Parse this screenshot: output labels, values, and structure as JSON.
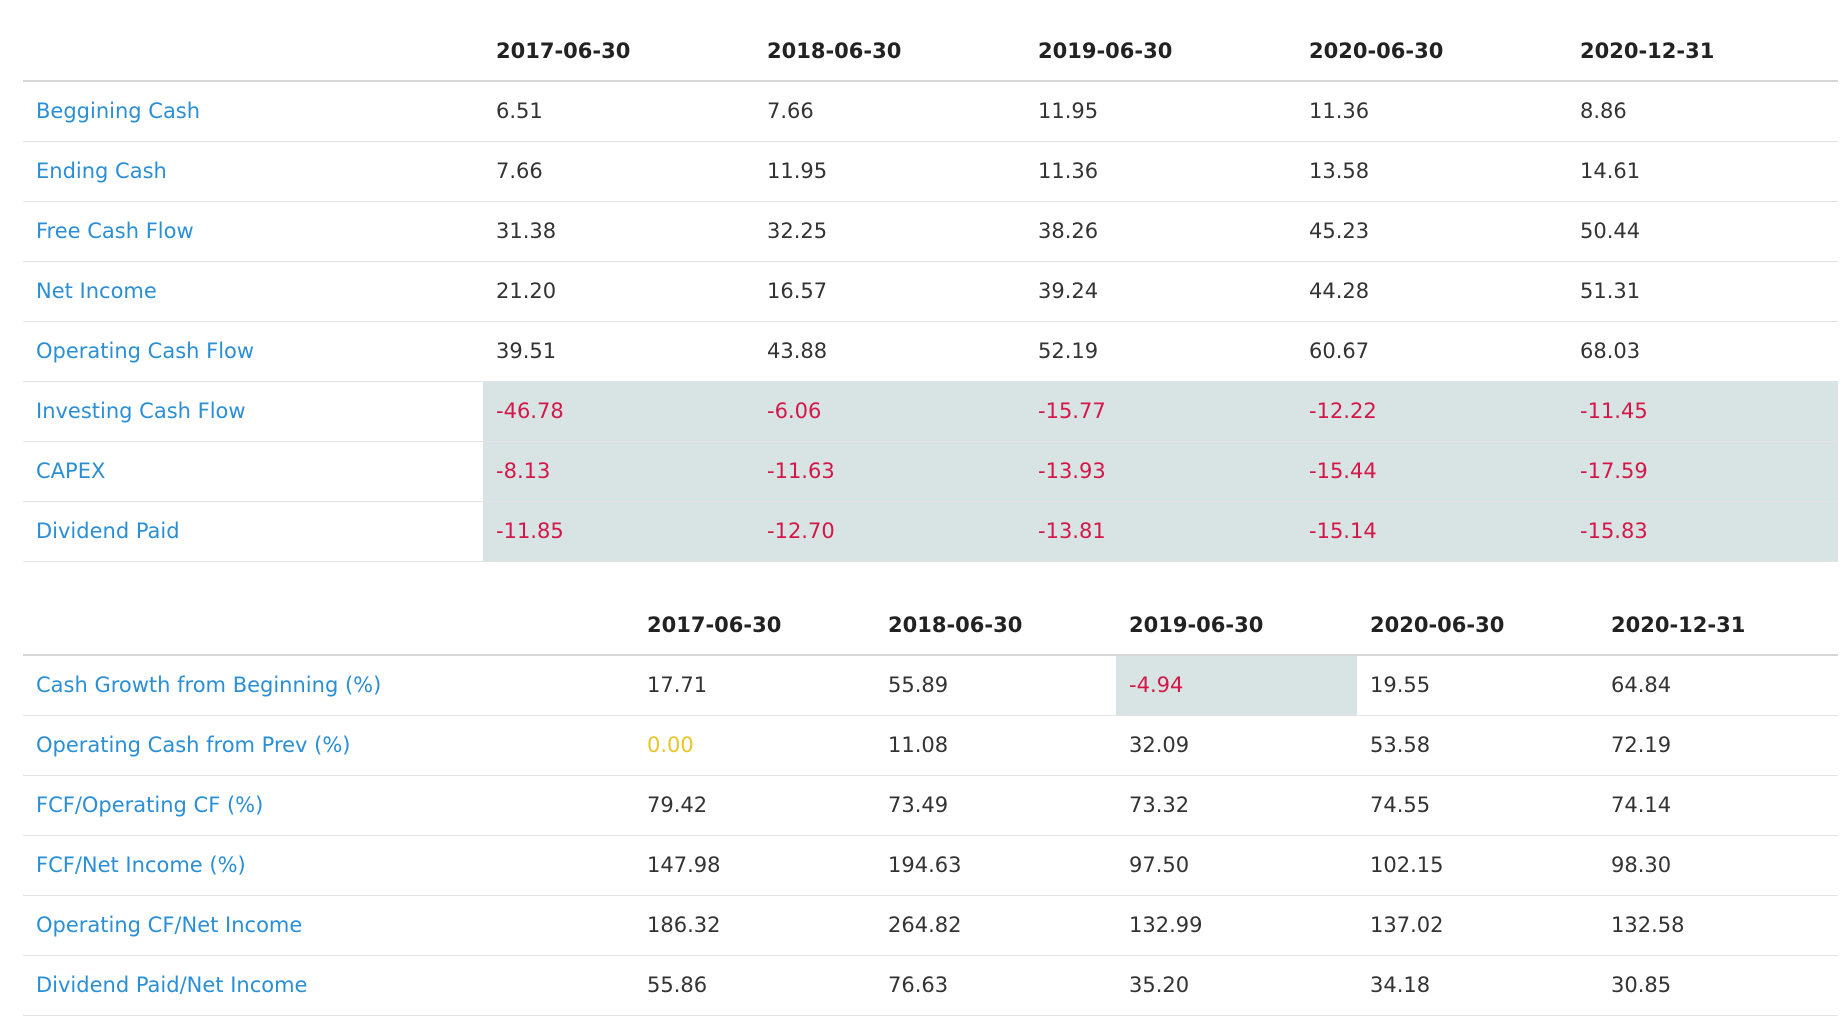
{
  "cashflow_table": {
    "headers": [
      "",
      "2017-06-30",
      "2018-06-30",
      "2019-06-30",
      "2020-06-30",
      "2020-12-31"
    ],
    "rows": [
      {
        "label": "Beggining Cash",
        "values": [
          "6.51",
          "7.66",
          "11.95",
          "11.36",
          "8.86"
        ]
      },
      {
        "label": "Ending Cash",
        "values": [
          "7.66",
          "11.95",
          "11.36",
          "13.58",
          "14.61"
        ]
      },
      {
        "label": "Free Cash Flow",
        "values": [
          "31.38",
          "32.25",
          "38.26",
          "45.23",
          "50.44"
        ]
      },
      {
        "label": "Net Income",
        "values": [
          "21.20",
          "16.57",
          "39.24",
          "44.28",
          "51.31"
        ]
      },
      {
        "label": "Operating Cash Flow",
        "values": [
          "39.51",
          "43.88",
          "52.19",
          "60.67",
          "68.03"
        ]
      },
      {
        "label": "Investing Cash Flow",
        "values": [
          "-46.78",
          "-6.06",
          "-15.77",
          "-12.22",
          "-11.45"
        ]
      },
      {
        "label": "CAPEX",
        "values": [
          "-8.13",
          "-11.63",
          "-13.93",
          "-15.44",
          "-17.59"
        ]
      },
      {
        "label": "Dividend Paid",
        "values": [
          "-11.85",
          "-12.70",
          "-13.81",
          "-15.14",
          "-15.83"
        ]
      }
    ]
  },
  "ratio_table": {
    "headers": [
      "",
      "2017-06-30",
      "2018-06-30",
      "2019-06-30",
      "2020-06-30",
      "2020-12-31"
    ],
    "rows": [
      {
        "label": "Cash Growth from Beginning (%)",
        "values": [
          "17.71",
          "55.89",
          "-4.94",
          "19.55",
          "64.84"
        ]
      },
      {
        "label": "Operating Cash from Prev (%)",
        "values": [
          "0.00",
          "11.08",
          "32.09",
          "53.58",
          "72.19"
        ]
      },
      {
        "label": "FCF/Operating CF (%)",
        "values": [
          "79.42",
          "73.49",
          "73.32",
          "74.55",
          "74.14"
        ]
      },
      {
        "label": "FCF/Net Income (%)",
        "values": [
          "147.98",
          "194.63",
          "97.50",
          "102.15",
          "98.30"
        ]
      },
      {
        "label": "Operating CF/Net Income",
        "values": [
          "186.32",
          "264.82",
          "132.99",
          "137.02",
          "132.58"
        ]
      },
      {
        "label": "Dividend Paid/Net Income",
        "values": [
          "55.86",
          "76.63",
          "35.20",
          "34.18",
          "30.85"
        ]
      }
    ]
  },
  "colors": {
    "label_link": "#2b8fd6",
    "negative": "#d4174a",
    "highlight_bg": "#d8e4e3",
    "zero_value": "#e8c52b"
  }
}
